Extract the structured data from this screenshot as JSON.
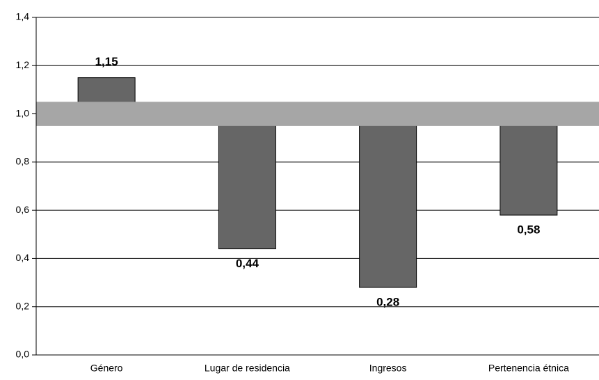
{
  "chart_data": {
    "type": "bar",
    "categories": [
      "Género",
      "Lugar de residencia",
      "Ingresos",
      "Pertenencia étnica"
    ],
    "values": [
      1.15,
      0.44,
      0.28,
      0.58
    ],
    "value_labels": [
      "1,15",
      "0,44",
      "0,28",
      "0,58"
    ],
    "color": "#666666",
    "baseline": 1,
    "reference_band": [
      0.95,
      1.05
    ],
    "reference_color": "#a6a6a6",
    "ylim": [
      0,
      1.4
    ],
    "yticks": [
      {
        "value": 0,
        "label": "0,0"
      },
      {
        "value": 0.2,
        "label": "0,2"
      },
      {
        "value": 0.4,
        "label": "0,4"
      },
      {
        "value": 0.6,
        "label": "0,6"
      },
      {
        "value": 0.8,
        "label": "0,8"
      },
      {
        "value": 1.0,
        "label": "1,0"
      },
      {
        "value": 1.2,
        "label": "1,2"
      },
      {
        "value": 1.4,
        "label": "1,4"
      }
    ],
    "grid": true
  }
}
